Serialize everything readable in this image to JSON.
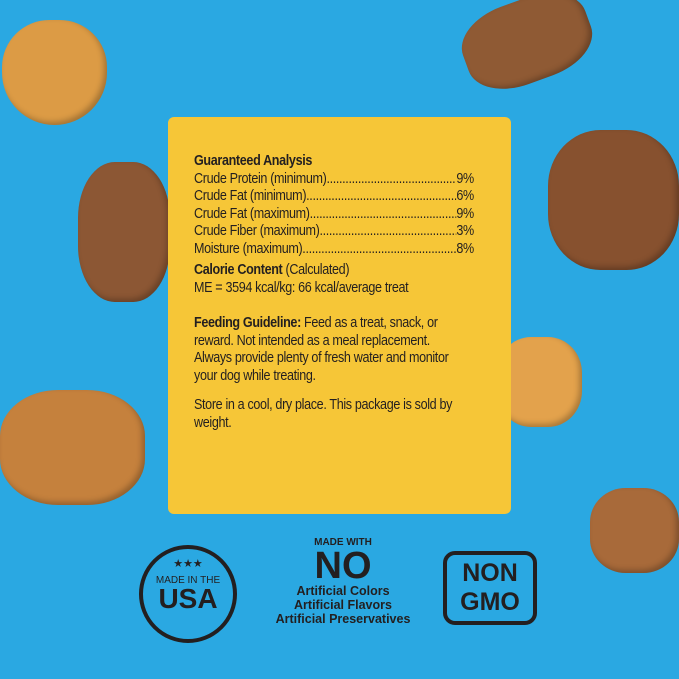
{
  "colors": {
    "background": "#2aa8e2",
    "panel": "#f6c637",
    "text": "#231f20",
    "cookie_light": "#d9953f",
    "cookie_dark": "#8a5430"
  },
  "analysis": {
    "title": "Guaranteed Analysis",
    "rows": [
      {
        "label": "Crude Protein (minimum)",
        "value": "9%"
      },
      {
        "label": "Crude Fat (minimum)",
        "value": "6%"
      },
      {
        "label": "Crude Fat (maximum)",
        "value": "9%"
      },
      {
        "label": "Crude Fiber (maximum)",
        "value": "3%"
      },
      {
        "label": "Moisture (maximum)",
        "value": "8%"
      }
    ]
  },
  "calorie": {
    "title": "Calorie Content",
    "qualifier": "(Calculated)",
    "value": "ME = 3594 kcal/kg: 66 kcal/average treat"
  },
  "feeding": {
    "title": "Feeding Guideline:",
    "text": "Feed as a treat, snack, or reward. Not intended as a meal replacement. Always provide plenty of fresh water and monitor your dog while treating."
  },
  "storage": "Store in a cool, dry place. This package is sold by weight.",
  "badges": {
    "usa": {
      "stars": "★★★",
      "top": "MADE IN THE",
      "big": "USA"
    },
    "no_artificial": {
      "made_with": "MADE WITH",
      "no": "NO",
      "lines": [
        "Artificial Colors",
        "Artificial Flavors",
        "Artificial Preservatives"
      ]
    },
    "gmo": {
      "line1": "NON",
      "line2": "GMO"
    }
  }
}
